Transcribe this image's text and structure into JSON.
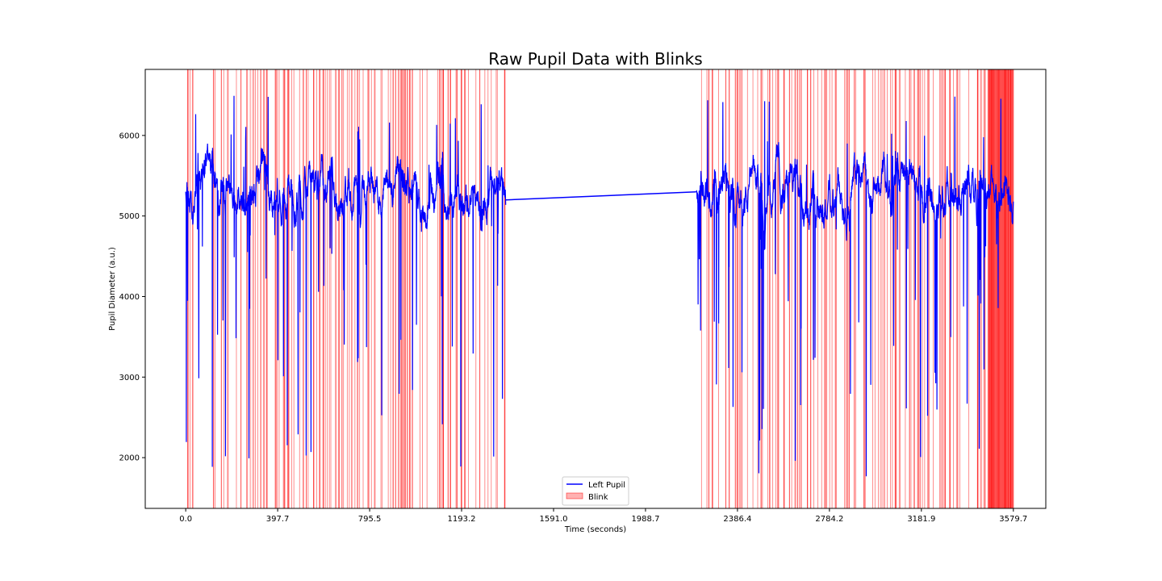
{
  "chart_data": {
    "type": "line",
    "title": "Raw Pupil Data with Blinks",
    "xlabel": "Time (seconds)",
    "ylabel": "Pupil Diameter (a.u.)",
    "xlim": [
      -175,
      3720
    ],
    "ylim": [
      1370,
      6820
    ],
    "xticks": [
      0.0,
      397.7,
      795.5,
      1193.2,
      1591.0,
      1988.7,
      2386.4,
      2784.2,
      3181.9,
      3579.7
    ],
    "xtick_labels": [
      "0.0",
      "397.7",
      "795.5",
      "1193.2",
      "1591.0",
      "1988.7",
      "2386.4",
      "2784.2",
      "3181.9",
      "3579.7"
    ],
    "yticks": [
      2000,
      3000,
      4000,
      5000,
      6000
    ],
    "ytick_labels": [
      "2000",
      "3000",
      "4000",
      "5000",
      "6000"
    ],
    "grid": false,
    "legend": {
      "placement": "lower center",
      "entries": [
        "Left Pupil",
        "Blink"
      ]
    },
    "series": [
      {
        "name": "Left Pupil",
        "color": "#0000ff",
        "segments": [
          {
            "x_range": [
              0,
              1385
            ],
            "mean": 5300,
            "min": 1880,
            "max": 6580
          },
          {
            "x_range": [
              2208,
              3580
            ],
            "mean": 5300,
            "min": 1600,
            "max": 6500
          }
        ],
        "connector": {
          "x": [
            1385,
            2208
          ],
          "y": [
            5200,
            5300
          ]
        }
      },
      {
        "name": "Blink",
        "color": "#ff0000",
        "kind": "vertical-spans",
        "x_ranges": [
          [
            0,
            1385
          ],
          [
            2220,
            3580
          ]
        ],
        "dense_near_end": [
          3470,
          3580
        ]
      }
    ]
  }
}
